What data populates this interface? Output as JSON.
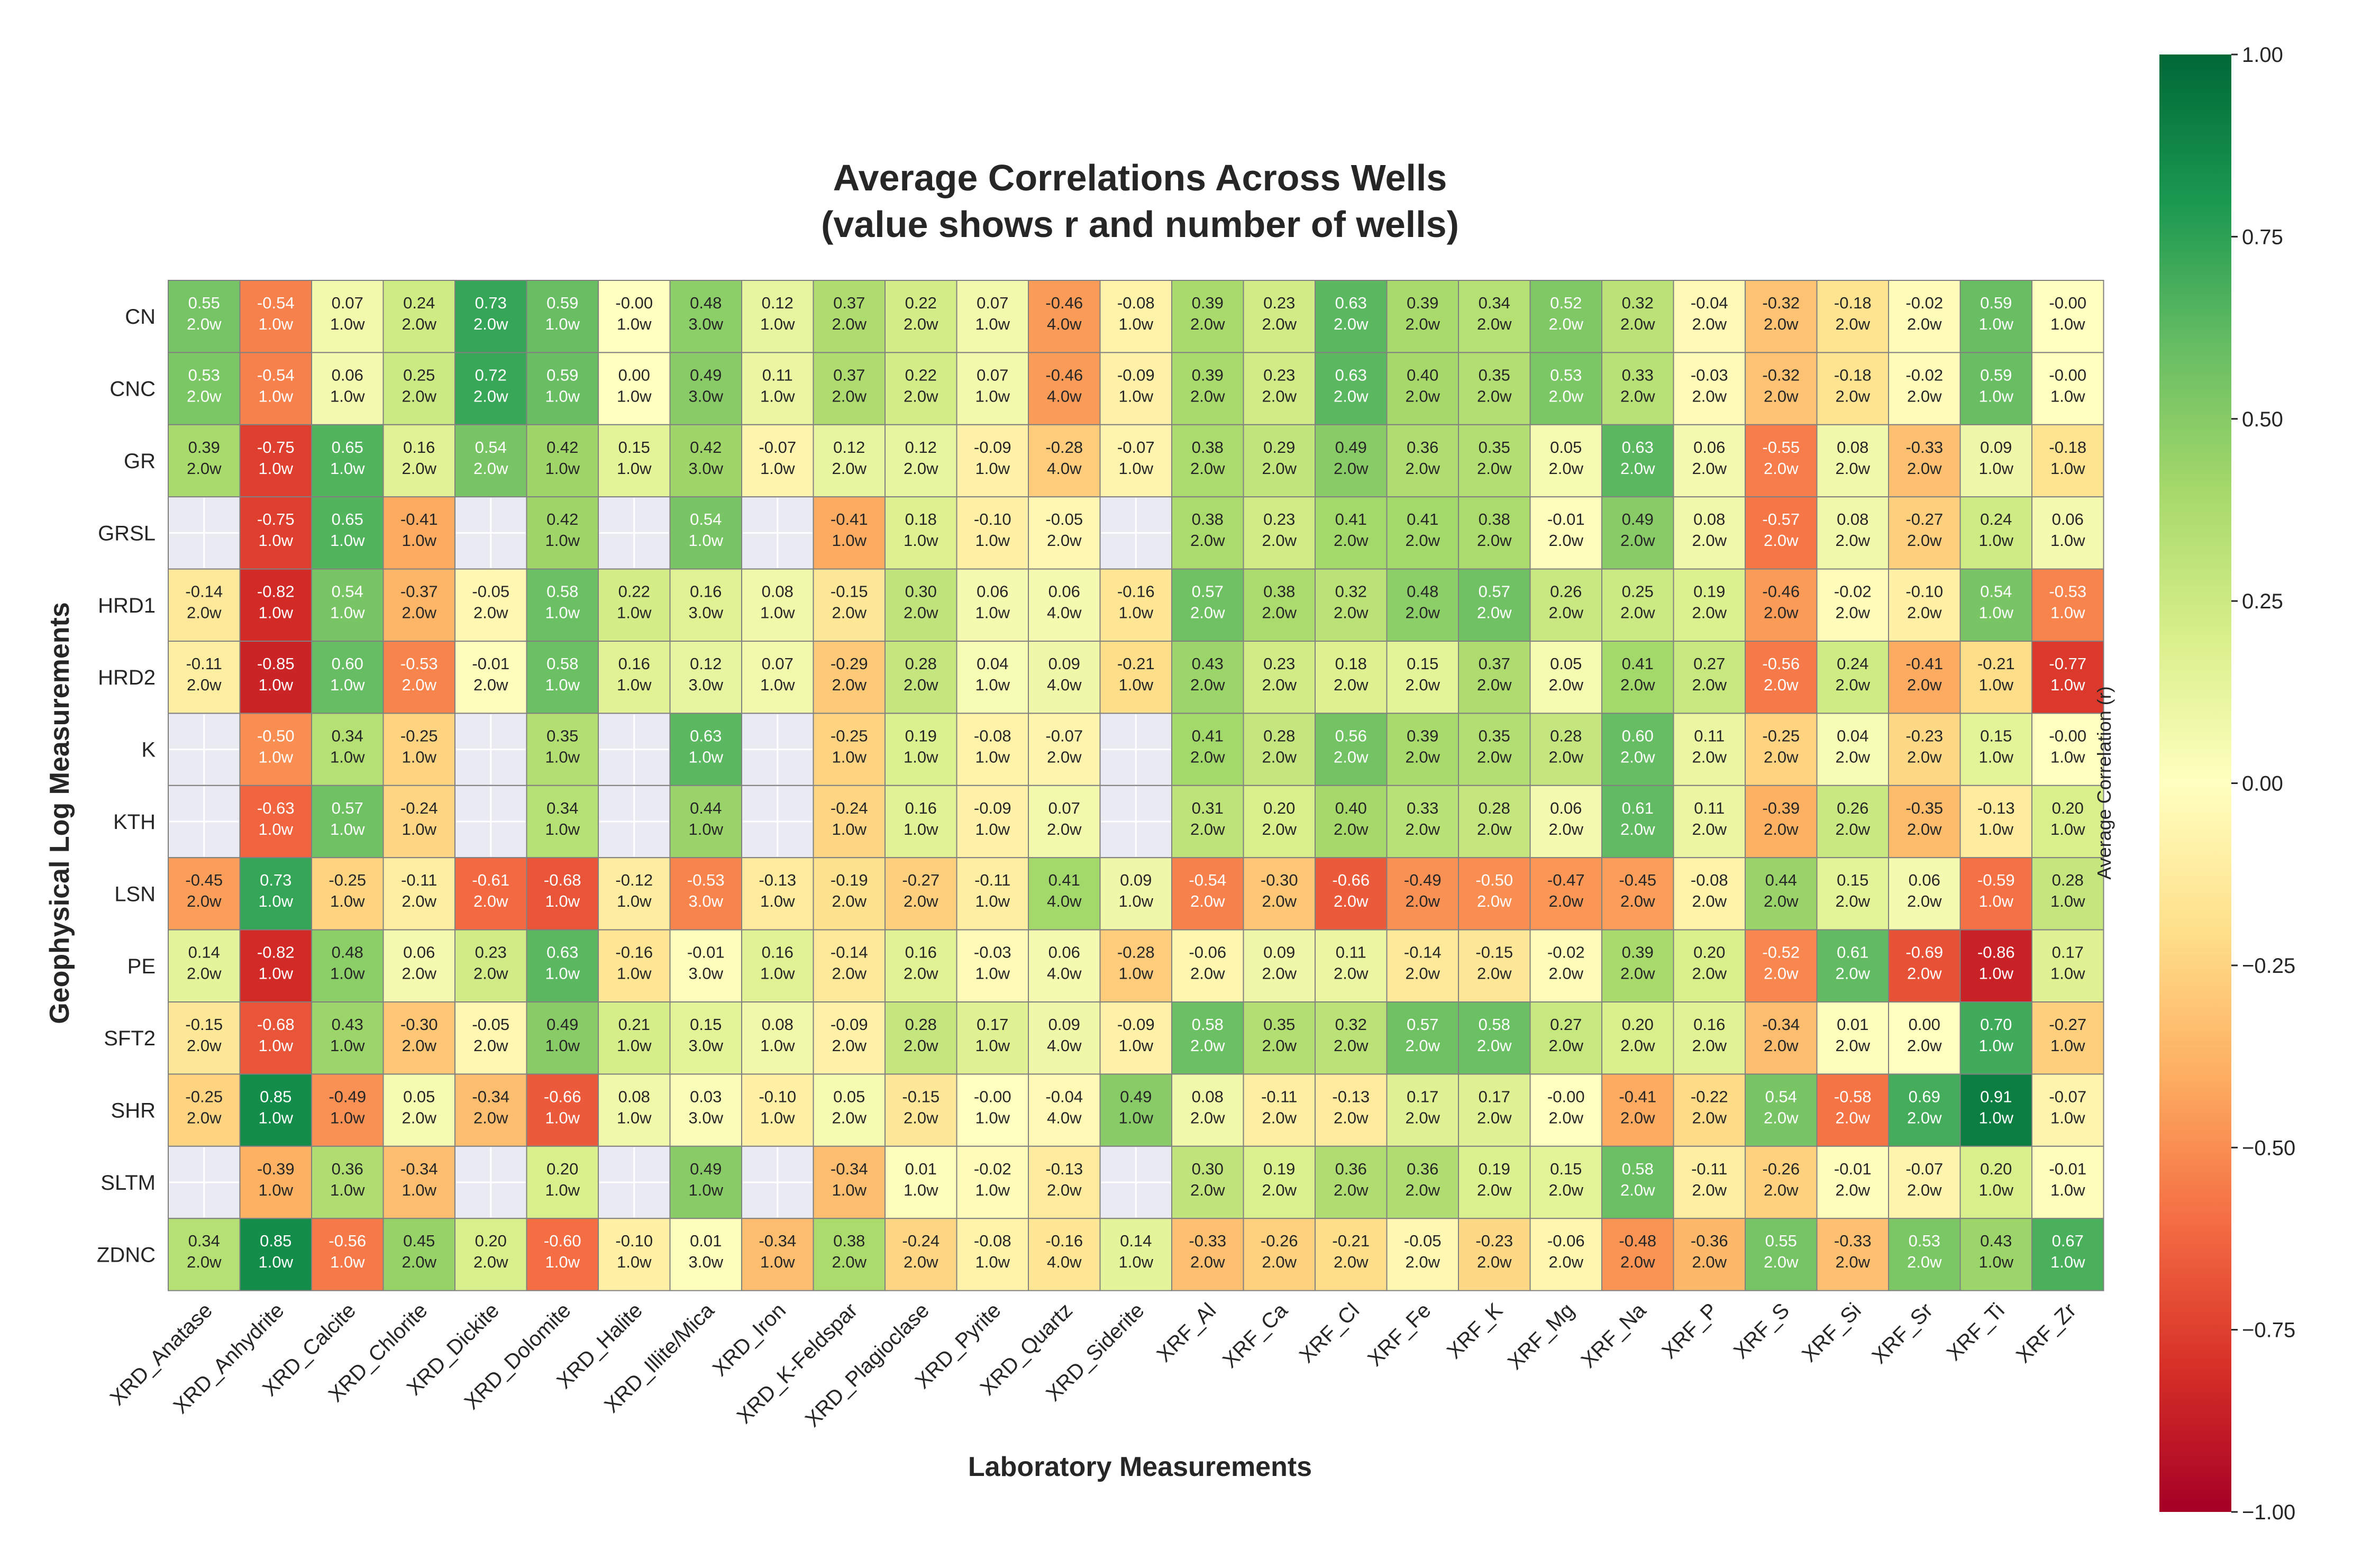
{
  "chart_data": {
    "type": "heatmap",
    "title": "Average Correlations Across Wells",
    "subtitle": "(value shows r and number of wells)",
    "xlabel": "Laboratory Measurements",
    "ylabel": "Geophysical Log Measurements",
    "colorbar_label": "Average Correlation (r)",
    "colorbar_range": [
      -1.0,
      1.0
    ],
    "colorbar_ticks": [
      "1.00",
      "0.75",
      "0.50",
      "0.25",
      "0.00",
      "−0.25",
      "−0.50",
      "−0.75",
      "−1.00"
    ],
    "colormap": "RdYlGn",
    "missing_color": "#eaeaf2",
    "x_categories": [
      "XRD_Anatase",
      "XRD_Anhydrite",
      "XRD_Calcite",
      "XRD_Chlorite",
      "XRD_Dickite",
      "XRD_Dolomite",
      "XRD_Halite",
      "XRD_Illite/Mica",
      "XRD_Iron",
      "XRD_K-Feldspar",
      "XRD_Plagioclase",
      "XRD_Pyrite",
      "XRD_Quartz",
      "XRD_Siderite",
      "XRF_Al",
      "XRF_Ca",
      "XRF_Cl",
      "XRF_Fe",
      "XRF_K",
      "XRF_Mg",
      "XRF_Na",
      "XRF_P",
      "XRF_S",
      "XRF_Si",
      "XRF_Sr",
      "XRF_Ti",
      "XRF_Zr"
    ],
    "y_categories": [
      "CN",
      "CNC",
      "GR",
      "GRSL",
      "HRD1",
      "HRD2",
      "K",
      "KTH",
      "LSN",
      "PE",
      "SFT2",
      "SHR",
      "SLTM",
      "ZDNC"
    ],
    "values": [
      [
        0.55,
        -0.54,
        0.07,
        0.24,
        0.73,
        0.59,
        -0.0,
        0.48,
        0.12,
        0.37,
        0.22,
        0.07,
        -0.46,
        -0.08,
        0.39,
        0.23,
        0.63,
        0.39,
        0.34,
        0.52,
        0.32,
        -0.04,
        -0.32,
        -0.18,
        -0.02,
        0.59,
        -0.0
      ],
      [
        0.53,
        -0.54,
        0.06,
        0.25,
        0.72,
        0.59,
        0.0,
        0.49,
        0.11,
        0.37,
        0.22,
        0.07,
        -0.46,
        -0.09,
        0.39,
        0.23,
        0.63,
        0.4,
        0.35,
        0.53,
        0.33,
        -0.03,
        -0.32,
        -0.18,
        -0.02,
        0.59,
        -0.0
      ],
      [
        0.39,
        -0.75,
        0.65,
        0.16,
        0.54,
        0.42,
        0.15,
        0.42,
        -0.07,
        0.12,
        0.12,
        -0.09,
        -0.28,
        -0.07,
        0.38,
        0.29,
        0.49,
        0.36,
        0.35,
        0.05,
        0.63,
        0.06,
        -0.55,
        0.08,
        -0.33,
        0.09,
        -0.18
      ],
      [
        null,
        -0.75,
        0.65,
        -0.41,
        null,
        0.42,
        null,
        0.54,
        null,
        -0.41,
        0.18,
        -0.1,
        -0.05,
        null,
        0.38,
        0.23,
        0.41,
        0.41,
        0.38,
        -0.01,
        0.49,
        0.08,
        -0.57,
        0.08,
        -0.27,
        0.24,
        0.06
      ],
      [
        -0.14,
        -0.82,
        0.54,
        -0.37,
        -0.05,
        0.58,
        0.22,
        0.16,
        0.08,
        -0.15,
        0.3,
        0.06,
        0.06,
        -0.16,
        0.57,
        0.38,
        0.32,
        0.48,
        0.57,
        0.26,
        0.25,
        0.19,
        -0.46,
        -0.02,
        -0.1,
        0.54,
        -0.53
      ],
      [
        -0.11,
        -0.85,
        0.6,
        -0.53,
        -0.01,
        0.58,
        0.16,
        0.12,
        0.07,
        -0.29,
        0.28,
        0.04,
        0.09,
        -0.21,
        0.43,
        0.23,
        0.18,
        0.15,
        0.37,
        0.05,
        0.41,
        0.27,
        -0.56,
        0.24,
        -0.41,
        -0.21,
        -0.77
      ],
      [
        null,
        -0.5,
        0.34,
        -0.25,
        null,
        0.35,
        null,
        0.63,
        null,
        -0.25,
        0.19,
        -0.08,
        -0.07,
        null,
        0.41,
        0.28,
        0.56,
        0.39,
        0.35,
        0.28,
        0.6,
        0.11,
        -0.25,
        0.04,
        -0.23,
        0.15,
        -0.0
      ],
      [
        null,
        -0.63,
        0.57,
        -0.24,
        null,
        0.34,
        null,
        0.44,
        null,
        -0.24,
        0.16,
        -0.09,
        0.07,
        null,
        0.31,
        0.2,
        0.4,
        0.33,
        0.28,
        0.06,
        0.61,
        0.11,
        -0.39,
        0.26,
        -0.35,
        -0.13,
        0.2
      ],
      [
        -0.45,
        0.73,
        -0.25,
        -0.11,
        -0.61,
        -0.68,
        -0.12,
        -0.53,
        -0.13,
        -0.19,
        -0.27,
        -0.11,
        0.41,
        0.09,
        -0.54,
        -0.3,
        -0.66,
        -0.49,
        -0.5,
        -0.47,
        -0.45,
        -0.08,
        0.44,
        0.15,
        0.06,
        -0.59,
        0.28
      ],
      [
        0.14,
        -0.82,
        0.48,
        0.06,
        0.23,
        0.63,
        -0.16,
        -0.01,
        0.16,
        -0.14,
        0.16,
        -0.03,
        0.06,
        -0.28,
        -0.06,
        0.09,
        0.11,
        -0.14,
        -0.15,
        -0.02,
        0.39,
        0.2,
        -0.52,
        0.61,
        -0.69,
        -0.86,
        0.17
      ],
      [
        -0.15,
        -0.68,
        0.43,
        -0.3,
        -0.05,
        0.49,
        0.21,
        0.15,
        0.08,
        -0.09,
        0.28,
        0.17,
        0.09,
        -0.09,
        0.58,
        0.35,
        0.32,
        0.57,
        0.58,
        0.27,
        0.2,
        0.16,
        -0.34,
        0.01,
        0.0,
        0.7,
        -0.27
      ],
      [
        -0.25,
        0.85,
        -0.49,
        0.05,
        -0.34,
        -0.66,
        0.08,
        0.03,
        -0.1,
        0.05,
        -0.15,
        -0.0,
        -0.04,
        0.49,
        0.08,
        -0.11,
        -0.13,
        0.17,
        0.17,
        -0.0,
        -0.41,
        -0.22,
        0.54,
        -0.58,
        0.69,
        0.91,
        -0.07
      ],
      [
        null,
        -0.39,
        0.36,
        -0.34,
        null,
        0.2,
        null,
        0.49,
        null,
        -0.34,
        0.01,
        -0.02,
        -0.13,
        null,
        0.3,
        0.19,
        0.36,
        0.36,
        0.19,
        0.15,
        0.58,
        -0.11,
        -0.26,
        -0.01,
        -0.07,
        0.2,
        -0.01
      ],
      [
        0.34,
        0.85,
        -0.56,
        0.45,
        0.2,
        -0.6,
        -0.1,
        0.01,
        -0.34,
        0.38,
        -0.24,
        -0.08,
        -0.16,
        0.14,
        -0.33,
        -0.26,
        -0.21,
        -0.05,
        -0.23,
        -0.06,
        -0.48,
        -0.36,
        0.55,
        -0.33,
        0.53,
        0.43,
        0.67
      ]
    ],
    "wells": [
      [
        2,
        1,
        1,
        2,
        2,
        1,
        1,
        3,
        1,
        2,
        2,
        1,
        4,
        1,
        2,
        2,
        2,
        2,
        2,
        2,
        2,
        2,
        2,
        2,
        2,
        1,
        1
      ],
      [
        2,
        1,
        1,
        2,
        2,
        1,
        1,
        3,
        1,
        2,
        2,
        1,
        4,
        1,
        2,
        2,
        2,
        2,
        2,
        2,
        2,
        2,
        2,
        2,
        2,
        1,
        1
      ],
      [
        2,
        1,
        1,
        2,
        2,
        1,
        1,
        3,
        1,
        2,
        2,
        1,
        4,
        1,
        2,
        2,
        2,
        2,
        2,
        2,
        2,
        2,
        2,
        2,
        2,
        1,
        1
      ],
      [
        null,
        1,
        1,
        1,
        null,
        1,
        null,
        1,
        null,
        1,
        1,
        1,
        2,
        null,
        2,
        2,
        2,
        2,
        2,
        2,
        2,
        2,
        2,
        2,
        2,
        1,
        1
      ],
      [
        2,
        1,
        1,
        2,
        2,
        1,
        1,
        3,
        1,
        2,
        2,
        1,
        4,
        1,
        2,
        2,
        2,
        2,
        2,
        2,
        2,
        2,
        2,
        2,
        2,
        1,
        1
      ],
      [
        2,
        1,
        1,
        2,
        2,
        1,
        1,
        3,
        1,
        2,
        2,
        1,
        4,
        1,
        2,
        2,
        2,
        2,
        2,
        2,
        2,
        2,
        2,
        2,
        2,
        1,
        1
      ],
      [
        null,
        1,
        1,
        1,
        null,
        1,
        null,
        1,
        null,
        1,
        1,
        1,
        2,
        null,
        2,
        2,
        2,
        2,
        2,
        2,
        2,
        2,
        2,
        2,
        2,
        1,
        1
      ],
      [
        null,
        1,
        1,
        1,
        null,
        1,
        null,
        1,
        null,
        1,
        1,
        1,
        2,
        null,
        2,
        2,
        2,
        2,
        2,
        2,
        2,
        2,
        2,
        2,
        2,
        1,
        1
      ],
      [
        2,
        1,
        1,
        2,
        2,
        1,
        1,
        3,
        1,
        2,
        2,
        1,
        4,
        1,
        2,
        2,
        2,
        2,
        2,
        2,
        2,
        2,
        2,
        2,
        2,
        1,
        1
      ],
      [
        2,
        1,
        1,
        2,
        2,
        1,
        1,
        3,
        1,
        2,
        2,
        1,
        4,
        1,
        2,
        2,
        2,
        2,
        2,
        2,
        2,
        2,
        2,
        2,
        2,
        1,
        1
      ],
      [
        2,
        1,
        1,
        2,
        2,
        1,
        1,
        3,
        1,
        2,
        2,
        1,
        4,
        1,
        2,
        2,
        2,
        2,
        2,
        2,
        2,
        2,
        2,
        2,
        2,
        1,
        1
      ],
      [
        2,
        1,
        1,
        2,
        2,
        1,
        1,
        3,
        1,
        2,
        2,
        1,
        4,
        1,
        2,
        2,
        2,
        2,
        2,
        2,
        2,
        2,
        2,
        2,
        2,
        1,
        1
      ],
      [
        null,
        1,
        1,
        1,
        null,
        1,
        null,
        1,
        null,
        1,
        1,
        1,
        2,
        null,
        2,
        2,
        2,
        2,
        2,
        2,
        2,
        2,
        2,
        2,
        2,
        1,
        1
      ],
      [
        2,
        1,
        1,
        2,
        2,
        1,
        1,
        3,
        1,
        2,
        2,
        1,
        4,
        1,
        2,
        2,
        2,
        2,
        2,
        2,
        2,
        2,
        2,
        2,
        2,
        1,
        1
      ]
    ]
  }
}
